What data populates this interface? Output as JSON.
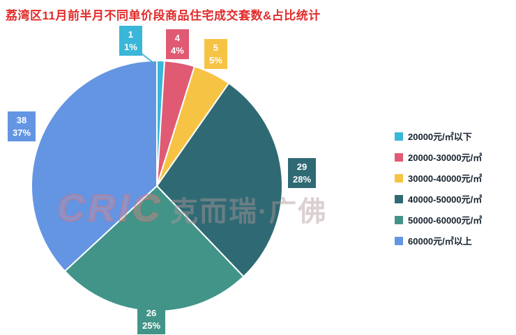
{
  "title": "荔湾区11月前半月不同单价段商品住宅成交套数&占比统计",
  "watermark": {
    "logo": "CRIC",
    "text": "克而瑞·广佛"
  },
  "chart_data": {
    "type": "pie",
    "title": "荔湾区11月前半月不同单价段商品住宅成交套数&占比统计",
    "categories": [
      "20000元/㎡以下",
      "20000-30000元/㎡",
      "30000-40000元/㎡",
      "40000-50000元/㎡",
      "50000-60000元/㎡",
      "60000元/㎡以上"
    ],
    "values": [
      1,
      4,
      5,
      29,
      26,
      38
    ],
    "percent_labels": [
      "1%",
      "4%",
      "5%",
      "28%",
      "25%",
      "37%"
    ],
    "colors": [
      "#3ab7d8",
      "#e05a73",
      "#f6c344",
      "#2f6a74",
      "#429488",
      "#6495e3"
    ],
    "start_angle_deg": 0,
    "direction": "clockwise",
    "legend_position": "right",
    "title_color": "#e02b2b"
  }
}
